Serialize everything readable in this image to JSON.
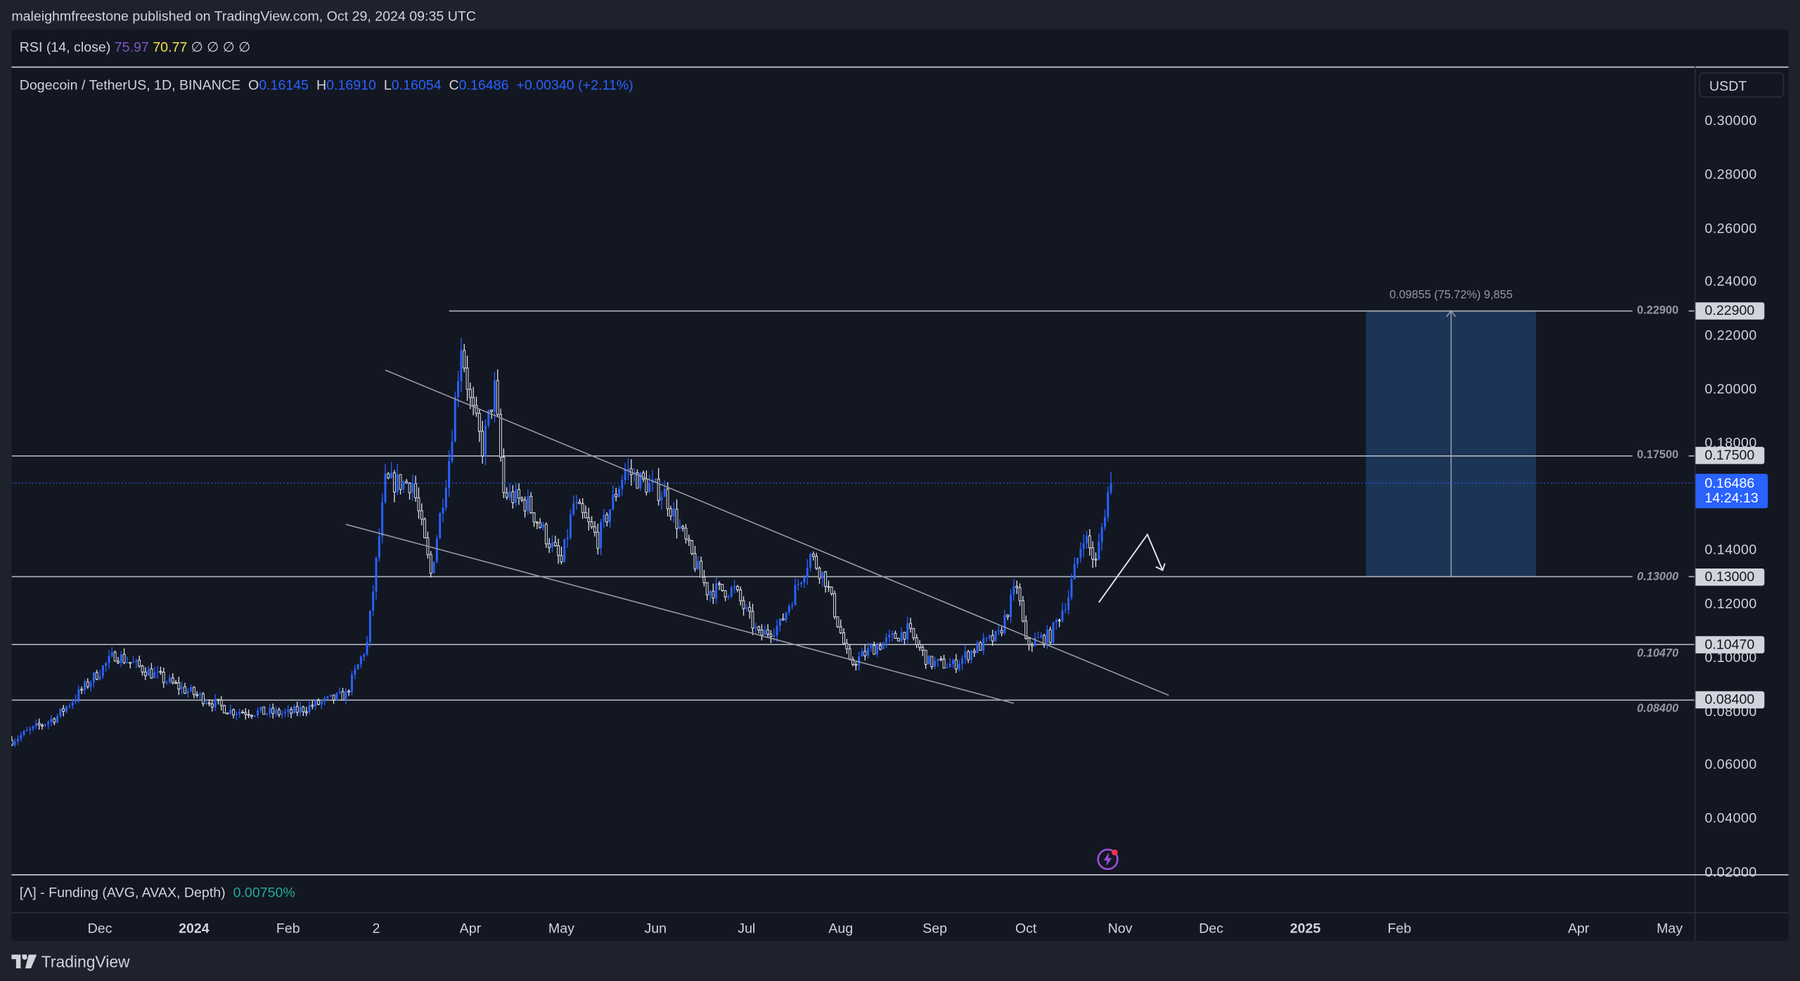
{
  "header": {
    "publisher_line": "maleighmfreestone published on TradingView.com, Oct 29, 2024 09:35 UTC"
  },
  "rsi_pane": {
    "label": "RSI (14, close)",
    "value1": "75.97",
    "value2": "70.77",
    "placeholders": "∅ ∅ ∅ ∅",
    "value1_color": "#7e57c2",
    "value2_color": "#f7e34a"
  },
  "legend": {
    "symbol": "Dogecoin / TetherUS, 1D, BINANCE",
    "o_label": "O",
    "o": "0.16145",
    "h_label": "H",
    "h": "0.16910",
    "l_label": "L",
    "l": "0.16054",
    "c_label": "C",
    "c": "0.16486",
    "change": "+0.00340 (+2.11%)"
  },
  "price_axis": {
    "currency": "USDT",
    "ticks": [
      "0.30000",
      "0.28000",
      "0.26000",
      "0.24000",
      "0.22000",
      "0.20000",
      "0.18000",
      "0.14000",
      "0.12000",
      "0.10000",
      "0.08000",
      "0.06000",
      "0.04000",
      "0.02000"
    ],
    "current_price": "0.16486",
    "countdown": "14:24:13"
  },
  "time_axis": {
    "ticks": [
      {
        "label": "Dec",
        "date": "2023-12-01",
        "bold": false
      },
      {
        "label": "2024",
        "date": "2024-01-01",
        "bold": true
      },
      {
        "label": "Feb",
        "date": "2024-02-01",
        "bold": false
      },
      {
        "label": "2",
        "date": "2024-03-01",
        "bold": false
      },
      {
        "label": "Apr",
        "date": "2024-04-01",
        "bold": false
      },
      {
        "label": "May",
        "date": "2024-05-01",
        "bold": false
      },
      {
        "label": "Jun",
        "date": "2024-06-01",
        "bold": false
      },
      {
        "label": "Jul",
        "date": "2024-07-01",
        "bold": false
      },
      {
        "label": "Aug",
        "date": "2024-08-01",
        "bold": false
      },
      {
        "label": "Sep",
        "date": "2024-09-01",
        "bold": false
      },
      {
        "label": "Oct",
        "date": "2024-10-01",
        "bold": false
      },
      {
        "label": "Nov",
        "date": "2024-11-01",
        "bold": false
      },
      {
        "label": "Dec",
        "date": "2024-12-01",
        "bold": false
      },
      {
        "label": "2025",
        "date": "2025-01-01",
        "bold": true
      },
      {
        "label": "Feb",
        "date": "2025-02-01",
        "bold": false
      },
      {
        "label": "Apr",
        "date": "2025-04-01",
        "bold": false
      },
      {
        "label": "May",
        "date": "2025-05-01",
        "bold": false
      }
    ]
  },
  "funding_pane": {
    "label": "[Λ] - Funding (AVG, AVAX, Depth)",
    "value": "0.00750%"
  },
  "footer": {
    "brand": "TradingView"
  },
  "colors": {
    "up": "#2962ff",
    "down": "#e0e3eb",
    "background": "#131722",
    "projection": "#1c3557"
  },
  "chart_data": {
    "type": "candlestick",
    "title": "Dogecoin / TetherUS, 1D, BINANCE",
    "ylim": [
      0.02,
      0.3
    ],
    "xlim": [
      "2023-11-02",
      "2025-05-10"
    ],
    "grid": false,
    "close_path": [
      [
        "2023-11-02",
        0.069
      ],
      [
        "2023-11-17",
        0.078
      ],
      [
        "2023-12-06",
        0.101
      ],
      [
        "2023-12-25",
        0.09
      ],
      [
        "2024-01-13",
        0.08
      ],
      [
        "2024-02-01",
        0.079
      ],
      [
        "2024-02-20",
        0.086
      ],
      [
        "2024-02-27",
        0.105
      ],
      [
        "2024-03-04",
        0.165
      ],
      [
        "2024-03-13",
        0.165
      ],
      [
        "2024-03-19",
        0.131
      ],
      [
        "2024-03-25",
        0.174
      ],
      [
        "2024-03-29",
        0.217
      ],
      [
        "2024-04-01",
        0.195
      ],
      [
        "2024-04-05",
        0.178
      ],
      [
        "2024-04-09",
        0.2
      ],
      [
        "2024-04-12",
        0.161
      ],
      [
        "2024-04-20",
        0.157
      ],
      [
        "2024-05-01",
        0.135
      ],
      [
        "2024-05-05",
        0.157
      ],
      [
        "2024-05-13",
        0.144
      ],
      [
        "2024-05-22",
        0.17
      ],
      [
        "2024-05-28",
        0.165
      ],
      [
        "2024-06-04",
        0.161
      ],
      [
        "2024-06-12",
        0.14
      ],
      [
        "2024-06-18",
        0.125
      ],
      [
        "2024-06-27",
        0.125
      ],
      [
        "2024-07-05",
        0.108
      ],
      [
        "2024-07-12",
        0.112
      ],
      [
        "2024-07-22",
        0.138
      ],
      [
        "2024-07-27",
        0.129
      ],
      [
        "2024-08-04",
        0.097
      ],
      [
        "2024-08-11",
        0.103
      ],
      [
        "2024-08-23",
        0.11
      ],
      [
        "2024-08-30",
        0.098
      ],
      [
        "2024-09-07",
        0.097
      ],
      [
        "2024-09-14",
        0.103
      ],
      [
        "2024-09-22",
        0.108
      ],
      [
        "2024-09-28",
        0.127
      ],
      [
        "2024-10-01",
        0.105
      ],
      [
        "2024-10-09",
        0.108
      ],
      [
        "2024-10-15",
        0.123
      ],
      [
        "2024-10-20",
        0.146
      ],
      [
        "2024-10-24",
        0.135
      ],
      [
        "2024-10-28",
        0.16145
      ]
    ],
    "last_candle": {
      "date": "2024-10-29",
      "open": 0.16145,
      "high": 0.1691,
      "low": 0.16054,
      "close": 0.16486
    },
    "horizontal_levels": [
      {
        "price": 0.229,
        "label": "0.22900",
        "start": "2024-03-25",
        "label_style": "inline"
      },
      {
        "price": 0.175,
        "label": "0.17500",
        "start": "2023-11-02",
        "label_style": "inline"
      },
      {
        "price": 0.13,
        "label": "0.13000",
        "start": "2023-11-02",
        "label_style": "inline-italic"
      },
      {
        "price": 0.1047,
        "label": "0.10470",
        "start": "2023-11-02",
        "label_style": "below-italic"
      },
      {
        "price": 0.084,
        "label": "0.08400",
        "start": "2023-11-02",
        "label_style": "below-italic"
      }
    ],
    "trendlines": [
      {
        "from": [
          "2024-03-04",
          0.207
        ],
        "to": [
          "2024-11-17",
          0.0858
        ]
      },
      {
        "from": [
          "2024-02-20",
          0.1495
        ],
        "to": [
          "2024-09-27",
          0.0828
        ]
      }
    ],
    "path_arrow": [
      [
        "2024-10-25",
        0.1204
      ],
      [
        "2024-11-10",
        0.1457
      ],
      [
        "2024-11-15",
        0.1324
      ]
    ],
    "projection": {
      "from_date": "2025-01-21",
      "to_date": "2025-03-18",
      "low": 0.13,
      "high": 0.229,
      "label": "0.09855 (75.72%) 9,855"
    }
  }
}
